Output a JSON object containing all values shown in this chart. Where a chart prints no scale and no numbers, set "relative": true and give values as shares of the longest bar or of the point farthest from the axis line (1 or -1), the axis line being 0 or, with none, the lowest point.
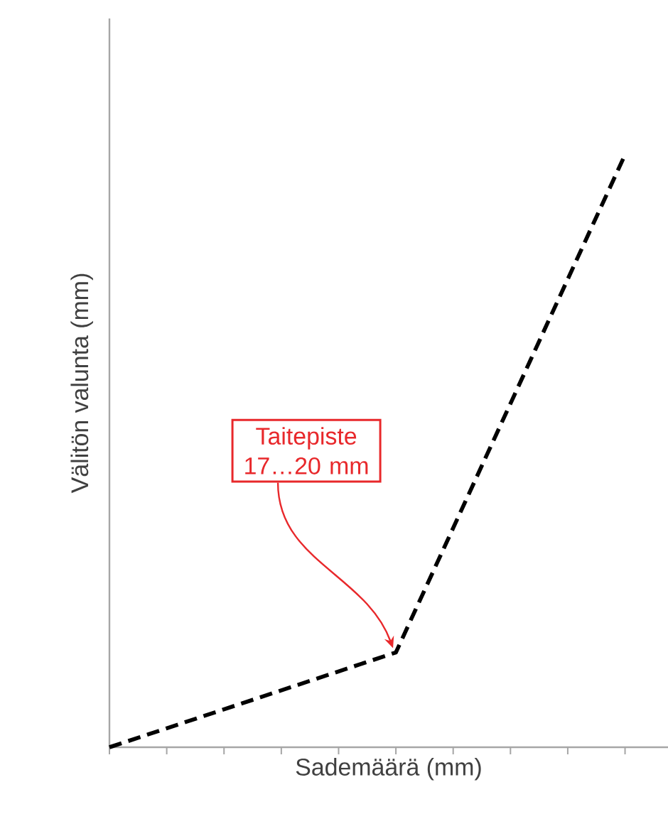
{
  "chart_data": {
    "type": "line",
    "relative": true,
    "xlabel": "Sademäärä (mm)",
    "ylabel": "Välitön valunta (mm)",
    "categories": [
      null,
      null,
      null,
      null,
      null,
      null,
      null,
      null,
      null,
      null
    ],
    "series": [
      {
        "color": "#000000",
        "values": [
          0,
          0.032,
          0.064,
          0.096,
          0.128,
          0.16,
          0.37,
          0.58,
          0.79,
          1
        ]
      }
    ],
    "line_style": "dashed",
    "marker": "none",
    "annotations": [
      "Taitepiste 17…20 mm"
    ]
  }
}
